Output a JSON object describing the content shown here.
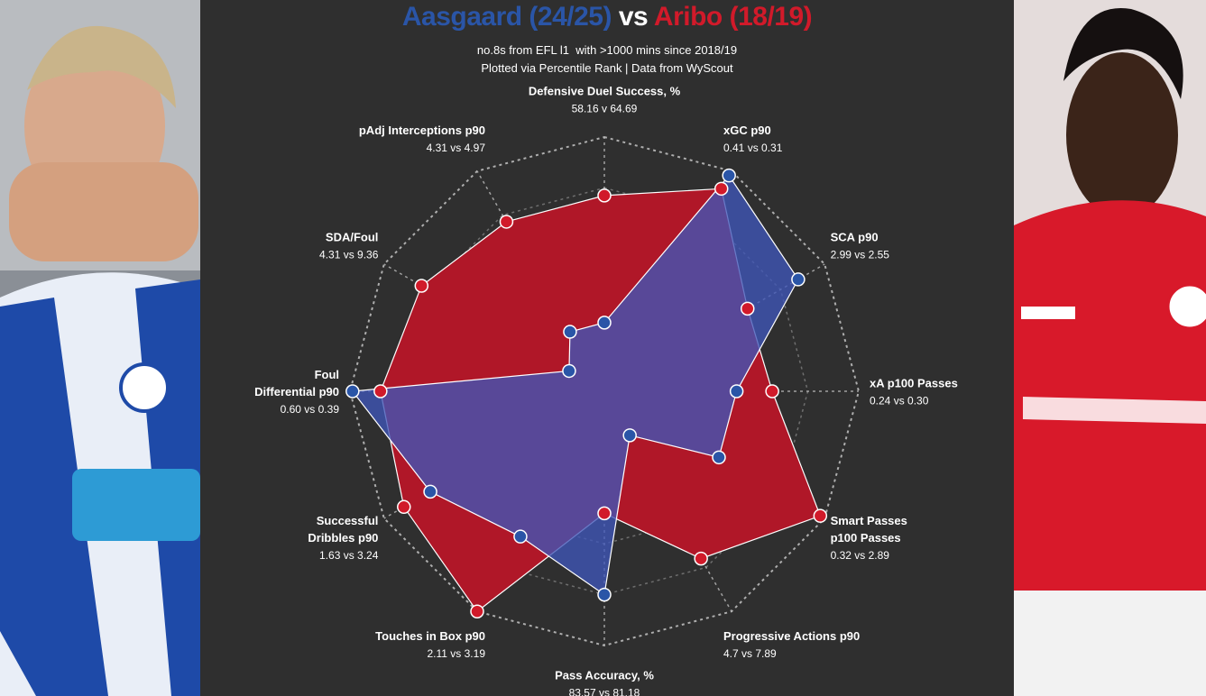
{
  "header": {
    "player1": "Aasgaard (24/25)",
    "vs": " vs ",
    "player2": "Aribo (18/19)",
    "subtitle1": "no.8s from EFL l1  with >1000 mins since 2018/19",
    "subtitle2": "Plotted via Percentile Rank | Data from WyScout"
  },
  "colors": {
    "player1": "#2a55a7",
    "player2": "#d11a2a",
    "player1_fill": "#3f56b8",
    "player2_fill": "#b01728",
    "background": "#2f2f2f",
    "grid": "#bdbdbd"
  },
  "chart_data": {
    "type": "radar",
    "scale": "percentile rank",
    "rmax": 100,
    "grid_rings": 5,
    "series": [
      {
        "name": "Aasgaard (24/25)",
        "color": "#2a55a7",
        "values": [
          27,
          98,
          88,
          52,
          52,
          20,
          80,
          66,
          79,
          99,
          16,
          27
        ]
      },
      {
        "name": "Aribo (18/19)",
        "color": "#d11a2a",
        "values": [
          77,
          92,
          65,
          66,
          98,
          76,
          48,
          100,
          91,
          88,
          83,
          77
        ]
      }
    ],
    "axes": [
      {
        "title": [
          "Defensive Duel Success, %"
        ],
        "values": "58.16 v 64.69"
      },
      {
        "title": [
          "xGC p90"
        ],
        "values": "0.41 vs 0.31"
      },
      {
        "title": [
          "SCA p90"
        ],
        "values": "2.99 vs 2.55"
      },
      {
        "title": [
          "xA p100 Passes"
        ],
        "values": "0.24 vs 0.30"
      },
      {
        "title": [
          "Smart Passes",
          "p100 Passes"
        ],
        "values": "0.32 vs 2.89"
      },
      {
        "title": [
          "Progressive Actions p90"
        ],
        "values": "4.7 vs 7.89"
      },
      {
        "title": [
          "Pass Accuracy, %"
        ],
        "values": "83.57 vs 81.18"
      },
      {
        "title": [
          "Touches in Box p90"
        ],
        "values": "2.11 vs 3.19"
      },
      {
        "title": [
          "Successful",
          "Dribbles p90"
        ],
        "values": "1.63 vs 3.24"
      },
      {
        "title": [
          "Foul",
          "Differential p90"
        ],
        "values": "0.60 vs 0.39"
      },
      {
        "title": [
          "SDA/Foul"
        ],
        "values": "4.31 vs 9.36"
      },
      {
        "title": [
          "pAdj Interceptions p90"
        ],
        "values": "4.31 vs 4.97"
      }
    ]
  }
}
